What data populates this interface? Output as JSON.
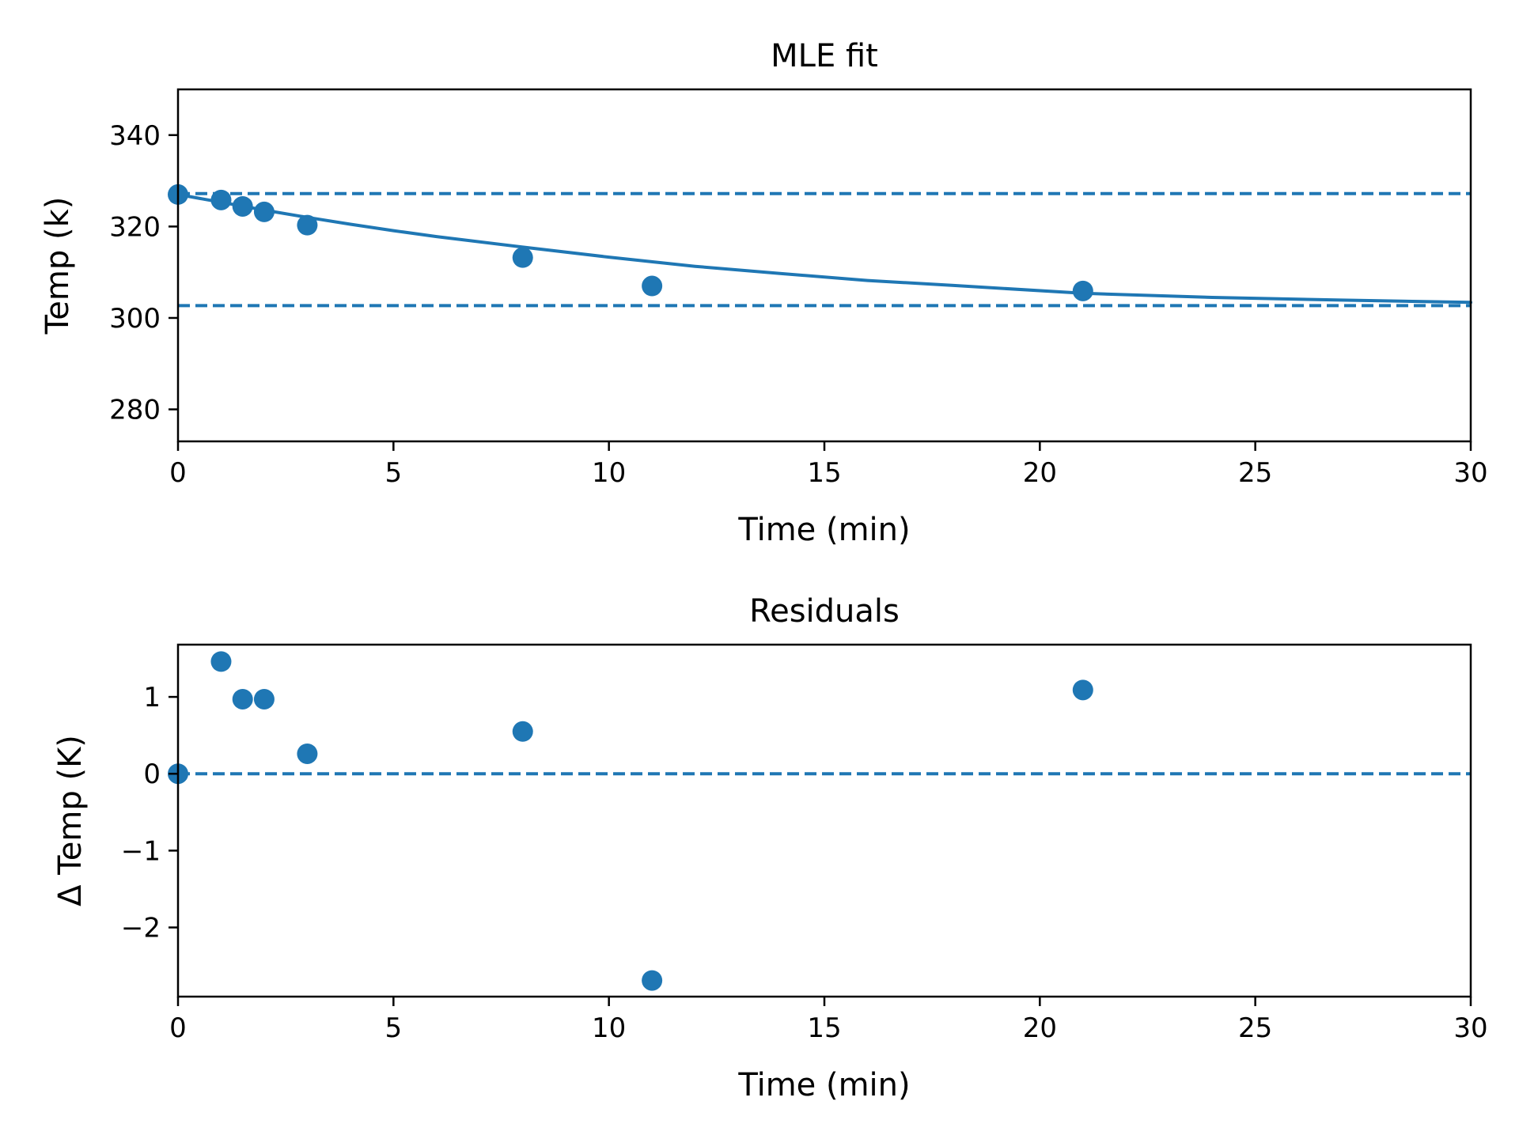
{
  "colors": {
    "series": "#1f77b4",
    "axes": "#000000",
    "background": "#ffffff"
  },
  "chart_data": [
    {
      "type": "scatter",
      "title": "MLE fit",
      "xlabel": "Time (min)",
      "ylabel": "Temp (k)",
      "xlim": [
        0,
        30
      ],
      "ylim": [
        273,
        350
      ],
      "xticks": [
        0,
        5,
        10,
        15,
        20,
        25,
        30
      ],
      "yticks": [
        280,
        300,
        320,
        340
      ],
      "points": [
        {
          "x": 0,
          "y": 327.0
        },
        {
          "x": 1,
          "y": 325.8
        },
        {
          "x": 1.5,
          "y": 324.4
        },
        {
          "x": 2,
          "y": 323.2
        },
        {
          "x": 3,
          "y": 320.3
        },
        {
          "x": 8,
          "y": 313.2
        },
        {
          "x": 11,
          "y": 307.0
        },
        {
          "x": 21,
          "y": 305.9
        }
      ],
      "fit_curve": {
        "style": "solid",
        "x": [
          0,
          1,
          2,
          3,
          4,
          5,
          6,
          8,
          10,
          12,
          14,
          16,
          18,
          21,
          24,
          27,
          30
        ],
        "y": [
          327.0,
          325.3,
          323.6,
          322.0,
          320.5,
          319.1,
          317.8,
          315.5,
          313.3,
          311.3,
          309.7,
          308.2,
          307.1,
          305.4,
          304.5,
          303.9,
          303.4
        ]
      },
      "reference_lines": [
        {
          "orientation": "horizontal",
          "y": 327.2,
          "style": "dashed"
        },
        {
          "orientation": "horizontal",
          "y": 302.7,
          "style": "dashed"
        }
      ],
      "grid": false,
      "legend": "none"
    },
    {
      "type": "scatter",
      "title": "Residuals",
      "xlabel": "Time (min)",
      "ylabel": "Δ Temp (K)",
      "xlim": [
        0,
        30
      ],
      "ylim": [
        -2.9,
        1.68
      ],
      "xticks": [
        0,
        5,
        10,
        15,
        20,
        25,
        30
      ],
      "yticks": [
        -2,
        -1,
        0,
        1
      ],
      "ytick_labels": [
        "−2",
        "−1",
        "0",
        "1"
      ],
      "points": [
        {
          "x": 0,
          "y": 0.0
        },
        {
          "x": 1,
          "y": 1.46
        },
        {
          "x": 1.5,
          "y": 0.97
        },
        {
          "x": 2,
          "y": 0.97
        },
        {
          "x": 3,
          "y": 0.26
        },
        {
          "x": 8,
          "y": 0.55
        },
        {
          "x": 11,
          "y": -2.69
        },
        {
          "x": 21,
          "y": 1.09
        }
      ],
      "reference_lines": [
        {
          "orientation": "horizontal",
          "y": 0,
          "style": "dashed"
        }
      ],
      "grid": false,
      "legend": "none"
    }
  ]
}
